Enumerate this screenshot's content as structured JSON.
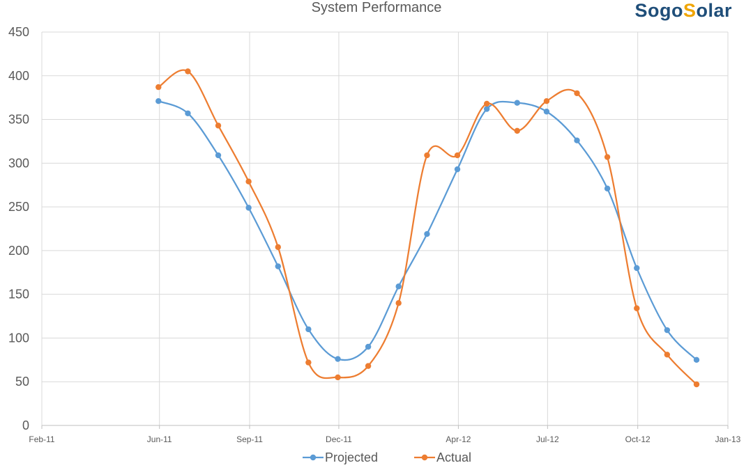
{
  "logo": {
    "part1": "Sogo",
    "part2": "S",
    "part3": "olar"
  },
  "colors": {
    "projected": "#5b9bd5",
    "actual": "#ed7d31",
    "grid": "#d9d9d9",
    "axis_text": "#595959"
  },
  "chart_data": {
    "type": "line",
    "title": "System Performance",
    "xlabel": "",
    "ylabel": "",
    "x_range": [
      "2011-02-01",
      "2013-01-01"
    ],
    "x_ticks": [
      {
        "date": "2011-02-01",
        "label": "Feb-11"
      },
      {
        "date": "2011-06-01",
        "label": "Jun-11"
      },
      {
        "date": "2011-09-01",
        "label": "Sep-11"
      },
      {
        "date": "2011-12-01",
        "label": "Dec-11"
      },
      {
        "date": "2012-04-01",
        "label": "Apr-12"
      },
      {
        "date": "2012-07-01",
        "label": "Jul-12"
      },
      {
        "date": "2012-10-01",
        "label": "Oct-12"
      },
      {
        "date": "2013-01-01",
        "label": "Jan-13"
      }
    ],
    "ylim": [
      0,
      450
    ],
    "y_ticks": [
      0,
      50,
      100,
      150,
      200,
      250,
      300,
      350,
      400,
      450
    ],
    "grid": true,
    "legend_position": "bottom",
    "x": [
      "2011-05-31",
      "2011-06-30",
      "2011-07-31",
      "2011-08-31",
      "2011-09-30",
      "2011-10-31",
      "2011-11-30",
      "2011-12-31",
      "2012-01-31",
      "2012-02-29",
      "2012-03-31",
      "2012-04-30",
      "2012-05-31",
      "2012-06-30",
      "2012-07-31",
      "2012-08-31",
      "2012-09-30",
      "2012-10-31",
      "2012-11-30"
    ],
    "series": [
      {
        "name": "Projected",
        "values": [
          371,
          357,
          309,
          249,
          182,
          110,
          76,
          90,
          159,
          219,
          293,
          362,
          369,
          359,
          326,
          271,
          180,
          109,
          75
        ]
      },
      {
        "name": "Actual",
        "values": [
          387,
          405,
          343,
          279,
          204,
          72,
          55,
          68,
          140,
          309,
          309,
          368,
          337,
          371,
          380,
          307,
          134,
          81,
          47
        ]
      }
    ]
  }
}
